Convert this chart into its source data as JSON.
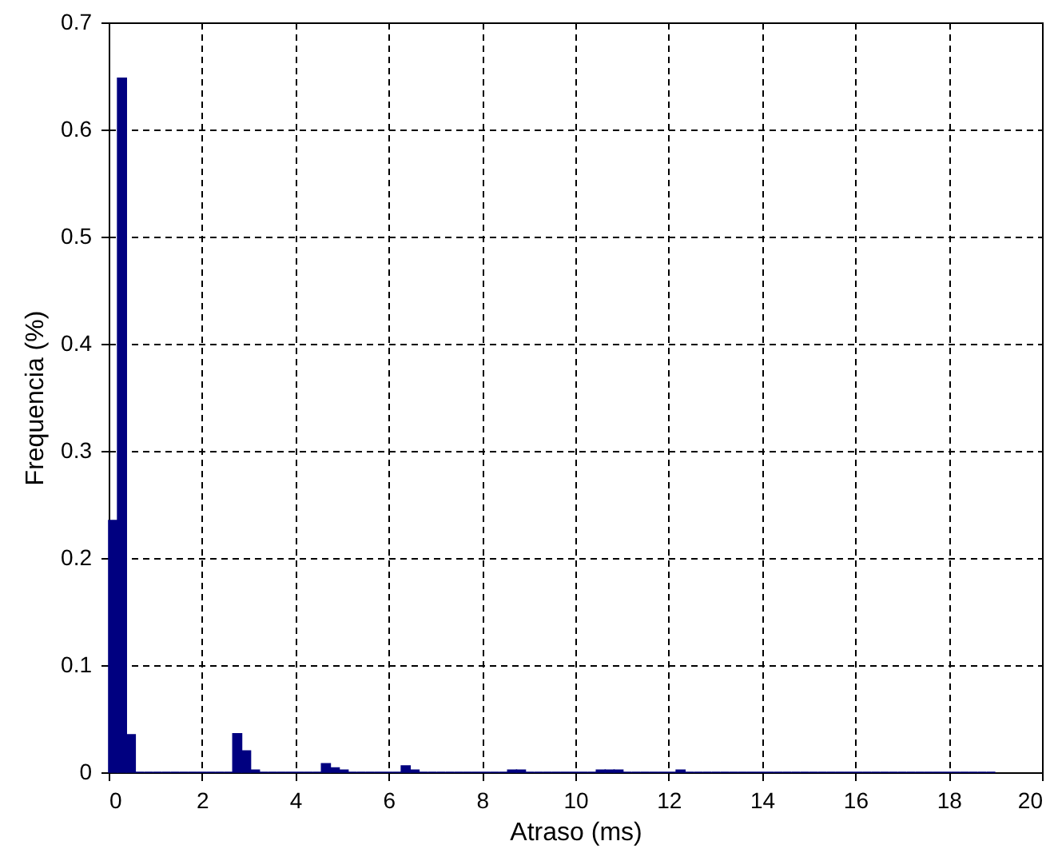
{
  "chart_data": {
    "type": "histogram",
    "xlabel": "Atraso (ms)",
    "ylabel": "Frequencia (%)",
    "color": "#000080",
    "bins": [
      0,
      0.19,
      0.38,
      0.57,
      0.76,
      0.95,
      1.14,
      1.33,
      1.52,
      1.71,
      1.9,
      2.09,
      2.28,
      2.47,
      2.66,
      2.85,
      3.04,
      3.23,
      3.42,
      3.61,
      3.8,
      3.99,
      4.18,
      4.37,
      4.56,
      4.75,
      4.94,
      5.13,
      5.32,
      5.51,
      5.7,
      5.89,
      6.08,
      6.27,
      6.46,
      6.65,
      6.84,
      7.03,
      7.22,
      7.41,
      7.6,
      7.79,
      7.98,
      8.17,
      8.36,
      8.55,
      8.74,
      8.93,
      9.12,
      9.31,
      9.5,
      9.69,
      9.88,
      10.07,
      10.26,
      10.45,
      10.64,
      10.83,
      11.02,
      11.21,
      11.4,
      11.59,
      11.78,
      11.97,
      12.16,
      12.35,
      12.54,
      12.73,
      12.92,
      13.11,
      13.3,
      13.49,
      13.68,
      13.87,
      14.06,
      14.25,
      14.44,
      14.63,
      14.82,
      15.01,
      15.2,
      15.39,
      15.58,
      15.77,
      15.96,
      16.15,
      16.34,
      16.53,
      16.72,
      16.91,
      17.1,
      17.29,
      17.48,
      17.67,
      17.86,
      18.05,
      18.24,
      18.43,
      18.62,
      18.81,
      19
    ],
    "values": [
      0.235,
      0.648,
      0.035,
      0,
      0,
      0,
      0,
      0,
      0,
      0,
      0,
      0,
      0,
      0,
      0.036,
      0.02,
      0.002,
      0,
      0,
      0,
      0,
      0,
      0,
      0,
      0.008,
      0.004,
      0.002,
      0,
      0,
      0,
      0,
      0,
      0,
      0.006,
      0.002,
      0,
      0,
      0,
      0,
      0,
      0,
      0,
      0,
      0,
      0,
      0.002,
      0.002,
      0,
      0,
      0,
      0,
      0,
      0,
      0,
      0,
      0.002,
      0.002,
      0.002,
      0,
      0,
      0,
      0,
      0,
      0,
      0.002,
      0,
      0,
      0,
      0,
      0,
      0,
      0,
      0,
      0,
      0,
      0,
      0,
      0,
      0,
      0,
      0,
      0,
      0,
      0,
      0,
      0,
      0,
      0,
      0,
      0,
      0,
      0,
      0,
      0,
      0,
      0,
      0,
      0,
      0,
      0
    ],
    "xlim": [
      0,
      20
    ],
    "xticks": [
      0,
      2,
      4,
      6,
      8,
      10,
      12,
      14,
      16,
      18,
      20
    ],
    "ylim": [
      0,
      0.7
    ],
    "yticks": [
      0,
      0.1,
      0.2,
      0.3,
      0.4,
      0.5,
      0.6,
      0.7
    ],
    "grid": true
  }
}
